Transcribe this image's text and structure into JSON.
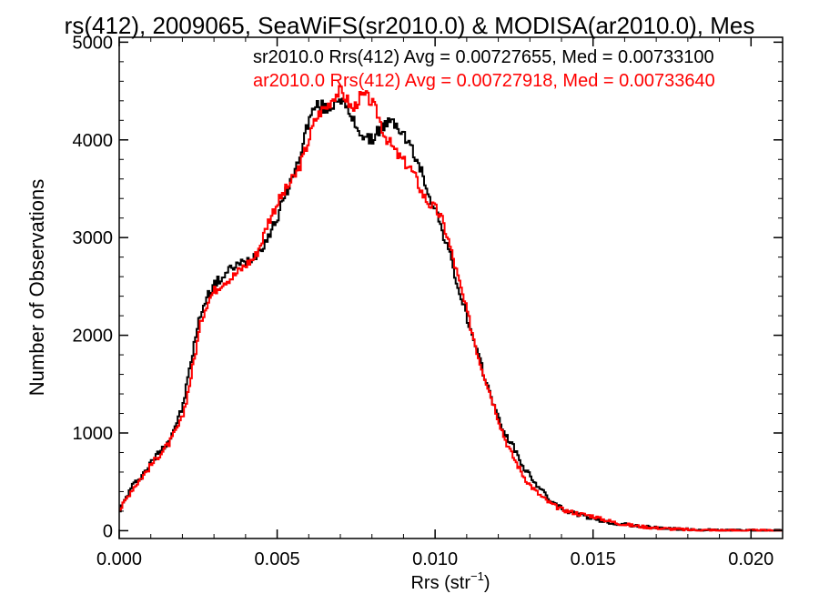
{
  "chart_data": {
    "type": "line",
    "title": "rs(412), 2009065, SeaWiFS(sr2010.0) & MODISA(ar2010.0), Mes",
    "xlabel": "Rrs (str",
    "xlabel_sup": "−1",
    "xlabel_close": ")",
    "ylabel": "Number of Observations",
    "xlim": [
      0.0,
      0.021
    ],
    "ylim": [
      -80,
      5050
    ],
    "xticks": [
      0.0,
      0.005,
      0.01,
      0.015,
      0.02
    ],
    "xtick_labels": [
      "0.000",
      "0.005",
      "0.010",
      "0.015",
      "0.020"
    ],
    "yticks": [
      0,
      1000,
      2000,
      3000,
      4000,
      5000
    ],
    "ytick_labels": [
      "0",
      "1000",
      "2000",
      "3000",
      "4000",
      "5000"
    ],
    "grid": false,
    "legend_placement": "top-right",
    "series": [
      {
        "label": "sr2010.0 Rrs(412) Avg = 0.00727655, Med = 0.00733100",
        "color": "#000000",
        "points": [
          [
            0.0,
            200
          ],
          [
            0.0004,
            450
          ],
          [
            0.0008,
            600
          ],
          [
            0.0012,
            780
          ],
          [
            0.0016,
            940
          ],
          [
            0.002,
            1250
          ],
          [
            0.0022,
            1600
          ],
          [
            0.0024,
            1950
          ],
          [
            0.0026,
            2250
          ],
          [
            0.0028,
            2400
          ],
          [
            0.003,
            2520
          ],
          [
            0.0033,
            2600
          ],
          [
            0.0036,
            2700
          ],
          [
            0.004,
            2750
          ],
          [
            0.0043,
            2820
          ],
          [
            0.0045,
            2900
          ],
          [
            0.0047,
            3000
          ],
          [
            0.005,
            3200
          ],
          [
            0.0053,
            3480
          ],
          [
            0.0056,
            3700
          ],
          [
            0.0058,
            3950
          ],
          [
            0.006,
            4200
          ],
          [
            0.0062,
            4340
          ],
          [
            0.0064,
            4350
          ],
          [
            0.0066,
            4300
          ],
          [
            0.0068,
            4380
          ],
          [
            0.007,
            4450
          ],
          [
            0.0072,
            4300
          ],
          [
            0.0074,
            4200
          ],
          [
            0.0076,
            4100
          ],
          [
            0.0078,
            4000
          ],
          [
            0.008,
            4000
          ],
          [
            0.0082,
            4100
          ],
          [
            0.0084,
            4150
          ],
          [
            0.0086,
            4180
          ],
          [
            0.0088,
            4150
          ],
          [
            0.009,
            4050
          ],
          [
            0.0092,
            3950
          ],
          [
            0.0094,
            3800
          ],
          [
            0.0096,
            3650
          ],
          [
            0.0098,
            3450
          ],
          [
            0.01,
            3300
          ],
          [
            0.0102,
            3100
          ],
          [
            0.0104,
            2900
          ],
          [
            0.0106,
            2650
          ],
          [
            0.0108,
            2400
          ],
          [
            0.011,
            2200
          ],
          [
            0.0112,
            1950
          ],
          [
            0.0114,
            1750
          ],
          [
            0.0116,
            1550
          ],
          [
            0.0118,
            1350
          ],
          [
            0.012,
            1150
          ],
          [
            0.0122,
            1000
          ],
          [
            0.0124,
            900
          ],
          [
            0.0126,
            780
          ],
          [
            0.0128,
            650
          ],
          [
            0.013,
            560
          ],
          [
            0.0132,
            480
          ],
          [
            0.0134,
            400
          ],
          [
            0.0136,
            330
          ],
          [
            0.0138,
            270
          ],
          [
            0.014,
            230
          ],
          [
            0.0142,
            200
          ],
          [
            0.0144,
            180
          ],
          [
            0.0146,
            160
          ],
          [
            0.0148,
            140
          ],
          [
            0.015,
            120
          ],
          [
            0.0152,
            100
          ],
          [
            0.0155,
            85
          ],
          [
            0.0158,
            70
          ],
          [
            0.0162,
            55
          ],
          [
            0.0166,
            40
          ],
          [
            0.017,
            30
          ],
          [
            0.0175,
            20
          ],
          [
            0.018,
            12
          ],
          [
            0.0185,
            7
          ],
          [
            0.019,
            4
          ],
          [
            0.02,
            2
          ],
          [
            0.021,
            0
          ]
        ]
      },
      {
        "label": "ar2010.0 Rrs(412) Avg = 0.00727918, Med = 0.00733640",
        "color": "#ff0000",
        "points": [
          [
            0.0,
            200
          ],
          [
            0.0004,
            420
          ],
          [
            0.0008,
            580
          ],
          [
            0.0012,
            750
          ],
          [
            0.0016,
            900
          ],
          [
            0.002,
            1150
          ],
          [
            0.0022,
            1450
          ],
          [
            0.0024,
            1800
          ],
          [
            0.0026,
            2150
          ],
          [
            0.0028,
            2350
          ],
          [
            0.003,
            2450
          ],
          [
            0.0033,
            2550
          ],
          [
            0.0036,
            2600
          ],
          [
            0.004,
            2720
          ],
          [
            0.0043,
            2800
          ],
          [
            0.0045,
            2950
          ],
          [
            0.0047,
            3150
          ],
          [
            0.005,
            3350
          ],
          [
            0.0053,
            3500
          ],
          [
            0.0056,
            3650
          ],
          [
            0.0058,
            3800
          ],
          [
            0.006,
            4000
          ],
          [
            0.0062,
            4200
          ],
          [
            0.0064,
            4300
          ],
          [
            0.0066,
            4350
          ],
          [
            0.0068,
            4450
          ],
          [
            0.007,
            4500
          ],
          [
            0.0072,
            4420
          ],
          [
            0.0074,
            4300
          ],
          [
            0.0076,
            4430
          ],
          [
            0.0078,
            4450
          ],
          [
            0.008,
            4380
          ],
          [
            0.0082,
            4250
          ],
          [
            0.0084,
            4050
          ],
          [
            0.0086,
            3950
          ],
          [
            0.0088,
            3850
          ],
          [
            0.009,
            3780
          ],
          [
            0.0092,
            3720
          ],
          [
            0.0094,
            3600
          ],
          [
            0.0096,
            3450
          ],
          [
            0.0098,
            3350
          ],
          [
            0.01,
            3300
          ],
          [
            0.0102,
            3200
          ],
          [
            0.0104,
            3000
          ],
          [
            0.0106,
            2750
          ],
          [
            0.0108,
            2500
          ],
          [
            0.011,
            2250
          ],
          [
            0.0112,
            2000
          ],
          [
            0.0114,
            1750
          ],
          [
            0.0116,
            1550
          ],
          [
            0.0118,
            1350
          ],
          [
            0.012,
            1150
          ],
          [
            0.0122,
            950
          ],
          [
            0.0124,
            800
          ],
          [
            0.0126,
            680
          ],
          [
            0.0128,
            560
          ],
          [
            0.013,
            470
          ],
          [
            0.0132,
            400
          ],
          [
            0.0134,
            340
          ],
          [
            0.0136,
            290
          ],
          [
            0.0138,
            250
          ],
          [
            0.014,
            220
          ],
          [
            0.0142,
            200
          ],
          [
            0.0144,
            185
          ],
          [
            0.0146,
            170
          ],
          [
            0.0148,
            160
          ],
          [
            0.015,
            150
          ],
          [
            0.0152,
            125
          ],
          [
            0.0155,
            100
          ],
          [
            0.0158,
            75
          ],
          [
            0.0162,
            55
          ],
          [
            0.0166,
            40
          ],
          [
            0.017,
            28
          ],
          [
            0.0175,
            18
          ],
          [
            0.018,
            10
          ],
          [
            0.0185,
            6
          ],
          [
            0.019,
            3
          ],
          [
            0.02,
            1
          ],
          [
            0.021,
            0
          ]
        ]
      }
    ]
  }
}
